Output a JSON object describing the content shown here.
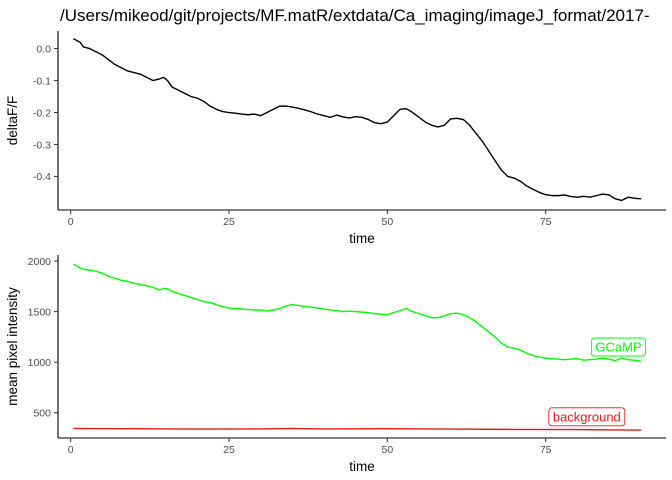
{
  "title": "/Users/mikeod/git/projects/MF.matR/extdata/Ca_imaging/imageJ_format/2017-",
  "chart_data": [
    {
      "type": "line",
      "xlabel": "time",
      "ylabel": "deltaF/F",
      "xlim": [
        -2,
        94
      ],
      "ylim": [
        -0.505,
        0.055
      ],
      "xticks": [
        0,
        25,
        50,
        75
      ],
      "yticks": [
        0.0,
        -0.1,
        -0.2,
        -0.3,
        -0.4
      ],
      "ytick_labels": [
        "0.0",
        "-0.1",
        "-0.2",
        "-0.3",
        "-0.4"
      ],
      "grid": false,
      "series": [
        {
          "color": "#000000",
          "x": [
            0.5,
            1.5,
            2,
            3,
            4,
            5,
            6,
            7,
            8,
            9,
            10,
            11,
            12,
            13,
            14,
            14.7,
            15.3,
            16,
            17,
            18,
            19,
            20,
            21,
            22,
            23,
            24,
            25,
            26,
            27,
            28,
            29,
            30,
            31,
            32,
            33,
            34,
            35,
            36,
            37,
            38,
            39,
            40,
            41,
            42,
            43,
            44,
            45,
            46,
            47,
            48,
            49,
            50,
            51,
            52,
            53,
            54,
            55,
            56,
            57,
            58,
            59,
            60,
            61,
            62,
            63,
            64,
            65,
            66,
            67,
            68,
            69,
            70,
            71,
            72,
            73,
            74,
            75,
            76,
            77,
            78,
            79,
            80,
            81,
            82,
            83,
            84,
            85,
            86,
            87,
            88,
            89,
            90
          ],
          "y": [
            0.03,
            0.02,
            0.005,
            0.0,
            -0.01,
            -0.02,
            -0.035,
            -0.05,
            -0.06,
            -0.07,
            -0.075,
            -0.08,
            -0.09,
            -0.1,
            -0.095,
            -0.09,
            -0.1,
            -0.12,
            -0.13,
            -0.14,
            -0.15,
            -0.155,
            -0.165,
            -0.18,
            -0.19,
            -0.197,
            -0.2,
            -0.202,
            -0.205,
            -0.207,
            -0.205,
            -0.21,
            -0.2,
            -0.19,
            -0.18,
            -0.18,
            -0.183,
            -0.187,
            -0.192,
            -0.198,
            -0.205,
            -0.21,
            -0.215,
            -0.208,
            -0.214,
            -0.217,
            -0.213,
            -0.215,
            -0.222,
            -0.232,
            -0.235,
            -0.23,
            -0.21,
            -0.19,
            -0.188,
            -0.2,
            -0.215,
            -0.23,
            -0.24,
            -0.245,
            -0.24,
            -0.22,
            -0.218,
            -0.222,
            -0.24,
            -0.265,
            -0.29,
            -0.32,
            -0.35,
            -0.38,
            -0.4,
            -0.405,
            -0.415,
            -0.43,
            -0.44,
            -0.45,
            -0.457,
            -0.46,
            -0.46,
            -0.458,
            -0.463,
            -0.465,
            -0.462,
            -0.465,
            -0.46,
            -0.455,
            -0.458,
            -0.47,
            -0.475,
            -0.465,
            -0.468,
            -0.47
          ]
        }
      ]
    },
    {
      "type": "line",
      "xlabel": "time",
      "ylabel": "mean pixel intensity",
      "xlim": [
        -2,
        94
      ],
      "ylim": [
        250,
        2060
      ],
      "xticks": [
        0,
        25,
        50,
        75
      ],
      "yticks": [
        500,
        1000,
        1500,
        2000
      ],
      "grid": false,
      "series": [
        {
          "name": "GCaMP",
          "color": "#00ff00",
          "x": [
            0.5,
            1,
            1.5,
            2,
            3,
            4,
            5,
            6,
            7,
            8,
            9,
            10,
            11,
            12,
            13,
            14,
            14.7,
            15.3,
            16,
            17,
            18,
            19,
            20,
            21,
            22,
            23,
            24,
            25,
            26,
            27,
            28,
            29,
            30,
            31,
            32,
            33,
            34,
            35,
            36,
            37,
            38,
            39,
            40,
            41,
            42,
            43,
            44,
            45,
            46,
            47,
            48,
            49,
            50,
            51,
            52,
            53,
            54,
            55,
            56,
            57,
            58,
            59,
            60,
            61,
            62,
            63,
            64,
            65,
            66,
            67,
            68,
            69,
            70,
            71,
            72,
            73,
            74,
            75,
            76,
            77,
            78,
            79,
            80,
            81,
            82,
            83,
            84,
            85,
            86,
            87,
            88,
            89,
            90
          ],
          "y": [
            1965,
            1950,
            1930,
            1920,
            1910,
            1900,
            1880,
            1850,
            1830,
            1810,
            1800,
            1780,
            1770,
            1755,
            1740,
            1715,
            1730,
            1725,
            1700,
            1680,
            1660,
            1640,
            1620,
            1600,
            1590,
            1570,
            1550,
            1535,
            1530,
            1525,
            1520,
            1515,
            1517,
            1505,
            1515,
            1530,
            1555,
            1570,
            1560,
            1550,
            1545,
            1535,
            1525,
            1515,
            1510,
            1500,
            1505,
            1500,
            1495,
            1490,
            1480,
            1475,
            1470,
            1490,
            1510,
            1530,
            1500,
            1480,
            1460,
            1440,
            1440,
            1460,
            1480,
            1485,
            1470,
            1440,
            1400,
            1350,
            1300,
            1250,
            1190,
            1150,
            1140,
            1120,
            1090,
            1065,
            1050,
            1040,
            1035,
            1030,
            1025,
            1030,
            1035,
            1020,
            1025,
            1030,
            1040,
            1030,
            1015,
            1040,
            1025,
            1020,
            1010
          ]
        },
        {
          "name": "background",
          "color": "#e41a1c",
          "x": [
            0.5,
            10,
            20,
            30,
            35,
            40,
            50,
            60,
            70,
            80,
            85,
            90
          ],
          "y": [
            345,
            342,
            338,
            340,
            345,
            340,
            342,
            338,
            335,
            333,
            330,
            328
          ]
        }
      ],
      "annotations": [
        {
          "text": "GCaMP",
          "x": 86.5,
          "y": 1150,
          "color": "#00ff00"
        },
        {
          "text": "background",
          "x": 81.5,
          "y": 460,
          "color": "#e41a1c"
        }
      ]
    }
  ]
}
